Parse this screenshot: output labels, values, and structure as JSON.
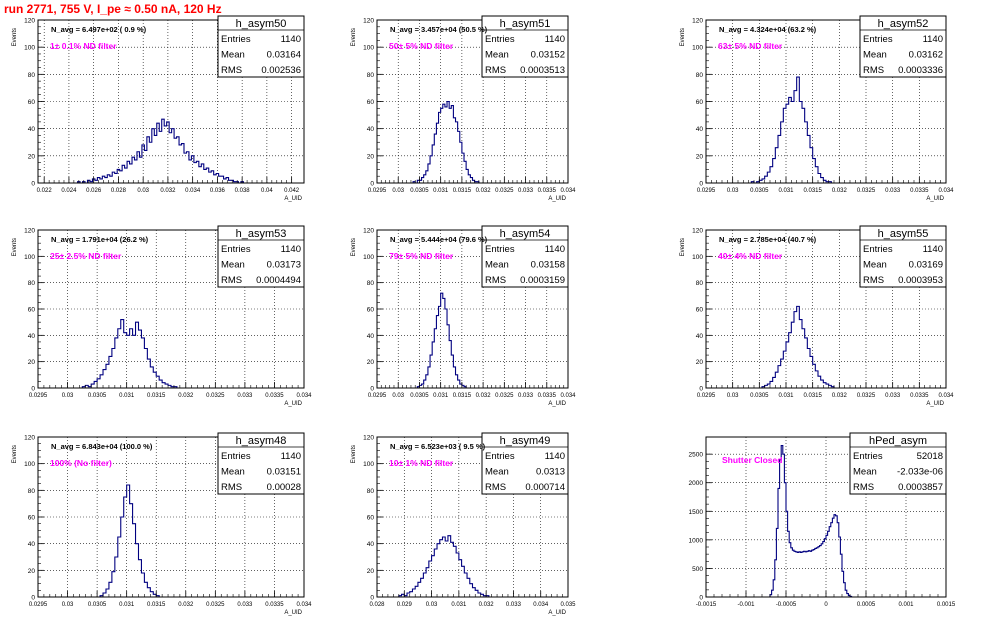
{
  "title": "run 2771,   755 V, I_pe ≈ 0.50 nA, 120 Hz",
  "chart_data": [
    {
      "type": "histogram",
      "name": "h_asym50",
      "ylabel": "Events",
      "xlabel": "A_UID",
      "navg": "N_avg = 6.497e+02 ( 0.9 %)",
      "filter": "1± 0.1% ND filter",
      "stats": [
        [
          "Entries",
          "1140"
        ],
        [
          "Mean",
          "0.03164"
        ],
        [
          "RMS",
          "0.002536"
        ]
      ],
      "xlim": [
        0.0215,
        0.043
      ],
      "ylim": [
        0,
        120
      ],
      "xticks": [
        "0.022",
        "0.024",
        "0.026",
        "0.028",
        "0.03",
        "0.032",
        "0.034",
        "0.036",
        "0.038",
        "0.04",
        "0.042"
      ],
      "xtick_values": [
        0.022,
        0.024,
        0.026,
        0.028,
        0.03,
        0.032,
        0.034,
        0.036,
        0.038,
        0.04,
        0.042
      ],
      "yticks": [
        "0",
        "20",
        "40",
        "60",
        "80",
        "100",
        "120"
      ],
      "ytick_values": [
        0,
        20,
        40,
        60,
        80,
        100,
        120
      ],
      "bin_start": 0.0245,
      "bin_width": 0.0002,
      "counts": [
        0,
        1,
        0,
        1,
        0,
        2,
        1,
        3,
        2,
        4,
        3,
        5,
        4,
        6,
        5,
        8,
        7,
        10,
        9,
        13,
        11,
        16,
        14,
        19,
        17,
        23,
        19,
        28,
        24,
        34,
        30,
        40,
        35,
        44,
        38,
        47,
        42,
        45,
        37,
        40,
        33,
        34,
        28,
        29,
        22,
        23,
        17,
        20,
        15,
        16,
        12,
        14,
        10,
        11,
        8,
        9,
        6,
        7,
        5,
        5,
        3,
        4,
        2,
        2,
        1,
        1,
        0,
        1,
        0,
        0
      ]
    },
    {
      "type": "histogram",
      "name": "h_asym51",
      "ylabel": "Events",
      "xlabel": "A_UID",
      "navg": "N_avg = 3.457e+04 (50.5 %)",
      "filter": "50± 5% ND filter",
      "stats": [
        [
          "Entries",
          "1140"
        ],
        [
          "Mean",
          "0.03152"
        ],
        [
          "RMS",
          "0.0003513"
        ]
      ],
      "xlim": [
        0.0295,
        0.034
      ],
      "ylim": [
        0,
        120
      ],
      "xticks": [
        "0.0295",
        "0.03",
        "0.0305",
        "0.031",
        "0.0315",
        "0.032",
        "0.0325",
        "0.033",
        "0.0335",
        "0.034"
      ],
      "xtick_values": [
        0.0295,
        0.03,
        0.0305,
        0.031,
        0.0315,
        0.032,
        0.0325,
        0.033,
        0.0335,
        0.034
      ],
      "yticks": [
        "0",
        "20",
        "40",
        "60",
        "80",
        "100",
        "120"
      ],
      "ytick_values": [
        0,
        20,
        40,
        60,
        80,
        100,
        120
      ],
      "bin_start": 0.0303,
      "bin_width": 5e-05,
      "counts": [
        0,
        1,
        0,
        2,
        2,
        4,
        6,
        9,
        14,
        20,
        28,
        36,
        44,
        52,
        55,
        58,
        56,
        60,
        55,
        57,
        48,
        45,
        38,
        30,
        22,
        16,
        10,
        6,
        4,
        2,
        1,
        1,
        0
      ]
    },
    {
      "type": "histogram",
      "name": "h_asym52",
      "ylabel": "Events",
      "xlabel": "A_UID",
      "navg": "N_avg = 4.324e+04 (63.2 %)",
      "filter": "63± 5% ND filter",
      "stats": [
        [
          "Entries",
          "1140"
        ],
        [
          "Mean",
          "0.03162"
        ],
        [
          "RMS",
          "0.0003336"
        ]
      ],
      "xlim": [
        0.0295,
        0.034
      ],
      "ylim": [
        0,
        120
      ],
      "xticks": [
        "0.0295",
        "0.03",
        "0.0305",
        "0.031",
        "0.0315",
        "0.032",
        "0.0325",
        "0.033",
        "0.0335",
        "0.034"
      ],
      "xtick_values": [
        0.0295,
        0.03,
        0.0305,
        0.031,
        0.0315,
        0.032,
        0.0325,
        0.033,
        0.0335,
        0.034
      ],
      "yticks": [
        "0",
        "20",
        "40",
        "60",
        "80",
        "100",
        "120"
      ],
      "ytick_values": [
        0,
        20,
        40,
        60,
        80,
        100,
        120
      ],
      "bin_start": 0.0303,
      "bin_width": 5e-05,
      "counts": [
        0,
        1,
        0,
        1,
        2,
        3,
        5,
        8,
        12,
        18,
        26,
        35,
        45,
        55,
        58,
        63,
        60,
        68,
        78,
        60,
        55,
        45,
        35,
        26,
        18,
        12,
        7,
        4,
        2,
        1,
        1,
        0
      ]
    },
    {
      "type": "histogram",
      "name": "h_asym53",
      "ylabel": "Events",
      "xlabel": "A_UID",
      "navg": "N_avg = 1.791e+04 (26.2 %)",
      "filter": "25± 2.5% ND filter",
      "stats": [
        [
          "Entries",
          "1140"
        ],
        [
          "Mean",
          "0.03173"
        ],
        [
          "RMS",
          "0.0004494"
        ]
      ],
      "xlim": [
        0.0295,
        0.034
      ],
      "ylim": [
        0,
        120
      ],
      "xticks": [
        "0.0295",
        "0.03",
        "0.0305",
        "0.031",
        "0.0315",
        "0.032",
        "0.0325",
        "0.033",
        "0.0335",
        "0.034"
      ],
      "xtick_values": [
        0.0295,
        0.03,
        0.0305,
        0.031,
        0.0315,
        0.032,
        0.0325,
        0.033,
        0.0335,
        0.034
      ],
      "yticks": [
        "0",
        "20",
        "40",
        "60",
        "80",
        "100",
        "120"
      ],
      "ytick_values": [
        0,
        20,
        40,
        60,
        80,
        100,
        120
      ],
      "bin_start": 0.0302,
      "bin_width": 5e-05,
      "counts": [
        0,
        1,
        2,
        1,
        3,
        5,
        7,
        10,
        14,
        18,
        24,
        30,
        38,
        45,
        52,
        42,
        40,
        45,
        40,
        50,
        44,
        38,
        30,
        22,
        16,
        12,
        9,
        6,
        4,
        3,
        2,
        1,
        1,
        0
      ]
    },
    {
      "type": "histogram",
      "name": "h_asym54",
      "ylabel": "Events",
      "xlabel": "A_UID",
      "navg": "N_avg = 5.444e+04 (79.6 %)",
      "filter": "79± 5% ND filter",
      "stats": [
        [
          "Entries",
          "1140"
        ],
        [
          "Mean",
          "0.03158"
        ],
        [
          "RMS",
          "0.0003159"
        ]
      ],
      "xlim": [
        0.0295,
        0.034
      ],
      "ylim": [
        0,
        120
      ],
      "xticks": [
        "0.0295",
        "0.03",
        "0.0305",
        "0.031",
        "0.0315",
        "0.032",
        "0.0325",
        "0.033",
        "0.0335",
        "0.034"
      ],
      "xtick_values": [
        0.0295,
        0.03,
        0.0305,
        0.031,
        0.0315,
        0.032,
        0.0325,
        0.033,
        0.0335,
        0.034
      ],
      "yticks": [
        "0",
        "20",
        "40",
        "60",
        "80",
        "100",
        "120"
      ],
      "ytick_values": [
        0,
        20,
        40,
        60,
        80,
        100,
        120
      ],
      "bin_start": 0.0304,
      "bin_width": 5e-05,
      "counts": [
        0,
        1,
        2,
        3,
        6,
        10,
        16,
        25,
        35,
        45,
        55,
        62,
        72,
        68,
        60,
        48,
        36,
        25,
        16,
        10,
        6,
        3,
        2,
        1,
        0
      ]
    },
    {
      "type": "histogram",
      "name": "h_asym55",
      "ylabel": "Events",
      "xlabel": "A_UID",
      "navg": "N_avg = 2.785e+04 (40.7 %)",
      "filter": "40± 4% ND filter",
      "stats": [
        [
          "Entries",
          "1140"
        ],
        [
          "Mean",
          "0.03169"
        ],
        [
          "RMS",
          "0.0003953"
        ]
      ],
      "xlim": [
        0.0295,
        0.034
      ],
      "ylim": [
        0,
        120
      ],
      "xticks": [
        "0.0295",
        "0.03",
        "0.0305",
        "0.031",
        "0.0315",
        "0.032",
        "0.0325",
        "0.033",
        "0.0335",
        "0.034"
      ],
      "xtick_values": [
        0.0295,
        0.03,
        0.0305,
        0.031,
        0.0315,
        0.032,
        0.0325,
        0.033,
        0.0335,
        0.034
      ],
      "yticks": [
        "0",
        "20",
        "40",
        "60",
        "80",
        "100",
        "120"
      ],
      "ytick_values": [
        0,
        20,
        40,
        60,
        80,
        100,
        120
      ],
      "bin_start": 0.0305,
      "bin_width": 5e-05,
      "counts": [
        0,
        1,
        2,
        3,
        5,
        8,
        12,
        17,
        22,
        28,
        35,
        42,
        50,
        58,
        62,
        52,
        45,
        38,
        30,
        24,
        18,
        13,
        9,
        6,
        4,
        3,
        2,
        1,
        0
      ]
    },
    {
      "type": "histogram",
      "name": "h_asym48",
      "ylabel": "Events",
      "xlabel": "A_UID",
      "navg": "N_avg = 6.843e+04 (100.0 %)",
      "filter": "100% (No filter)",
      "stats": [
        [
          "Entries",
          "1140"
        ],
        [
          "Mean",
          "0.03151"
        ],
        [
          "RMS",
          "0.00028"
        ]
      ],
      "xlim": [
        0.0295,
        0.034
      ],
      "ylim": [
        0,
        120
      ],
      "xticks": [
        "0.0295",
        "0.03",
        "0.0305",
        "0.031",
        "0.0315",
        "0.032",
        "0.0325",
        "0.033",
        "0.0335",
        "0.034"
      ],
      "xtick_values": [
        0.0295,
        0.03,
        0.0305,
        0.031,
        0.0315,
        0.032,
        0.0325,
        0.033,
        0.0335,
        0.034
      ],
      "yticks": [
        "0",
        "20",
        "40",
        "60",
        "80",
        "100",
        "120"
      ],
      "ytick_values": [
        0,
        20,
        40,
        60,
        80,
        100,
        120
      ],
      "bin_start": 0.0305,
      "bin_width": 5e-05,
      "counts": [
        0,
        1,
        3,
        6,
        11,
        19,
        30,
        45,
        60,
        75,
        84,
        70,
        55,
        40,
        28,
        18,
        11,
        7,
        4,
        2,
        1,
        0
      ]
    },
    {
      "type": "histogram",
      "name": "h_asym49",
      "ylabel": "Events",
      "xlabel": "A_UID",
      "navg": "N_avg = 6.523e+03 ( 9.5 %)",
      "filter": "10± 1% ND filter",
      "stats": [
        [
          "Entries",
          "1140"
        ],
        [
          "Mean",
          "0.0313"
        ],
        [
          "RMS",
          "0.000714"
        ]
      ],
      "xlim": [
        0.028,
        0.035
      ],
      "ylim": [
        0,
        120
      ],
      "xticks": [
        "0.028",
        "0.029",
        "0.03",
        "0.031",
        "0.032",
        "0.033",
        "0.034",
        "0.035"
      ],
      "xtick_values": [
        0.028,
        0.029,
        0.03,
        0.031,
        0.032,
        0.033,
        0.034,
        0.035
      ],
      "yticks": [
        "0",
        "20",
        "40",
        "60",
        "80",
        "100",
        "120"
      ],
      "ytick_values": [
        0,
        20,
        40,
        60,
        80,
        100,
        120
      ],
      "bin_start": 0.0287,
      "bin_width": 0.0001,
      "counts": [
        0,
        1,
        2,
        1,
        3,
        4,
        6,
        8,
        11,
        14,
        18,
        22,
        27,
        31,
        36,
        40,
        43,
        45,
        42,
        46,
        41,
        38,
        33,
        28,
        23,
        18,
        14,
        10,
        7,
        5,
        3,
        2,
        1,
        1,
        0
      ]
    },
    {
      "type": "histogram",
      "name": "hPed_asym",
      "ylabel": "",
      "xlabel": "",
      "navg": "",
      "filter": "Shutter Closed",
      "stats": [
        [
          "Entries",
          "52018"
        ],
        [
          "Mean",
          "-2.033e-06"
        ],
        [
          "RMS",
          "0.0003857"
        ]
      ],
      "xlim": [
        -0.0015,
        0.0015
      ],
      "ylim": [
        0,
        2800
      ],
      "xticks": [
        "-0.0015",
        "-0.001",
        "-0.0005",
        "0",
        "0.0005",
        "0.001",
        "0.0015"
      ],
      "xtick_values": [
        -0.0015,
        -0.001,
        -0.0005,
        0,
        0.0005,
        0.001,
        0.0015
      ],
      "yticks": [
        "0",
        "500",
        "1000",
        "1500",
        "2000",
        "2500"
      ],
      "ytick_values": [
        0,
        500,
        1000,
        1500,
        2000,
        2500
      ],
      "bin_start": -0.00072,
      "bin_width": 2e-05,
      "counts": [
        0,
        40,
        120,
        300,
        650,
        1200,
        1900,
        2400,
        2650,
        2500,
        2000,
        1500,
        1150,
        950,
        860,
        820,
        800,
        790,
        780,
        790,
        780,
        790,
        800,
        790,
        800,
        810,
        800,
        820,
        830,
        850,
        860,
        880,
        900,
        930,
        970,
        1020,
        1080,
        1150,
        1230,
        1300,
        1380,
        1440,
        1420,
        1300,
        1050,
        750,
        450,
        250,
        120,
        60,
        25,
        10,
        0
      ]
    }
  ]
}
